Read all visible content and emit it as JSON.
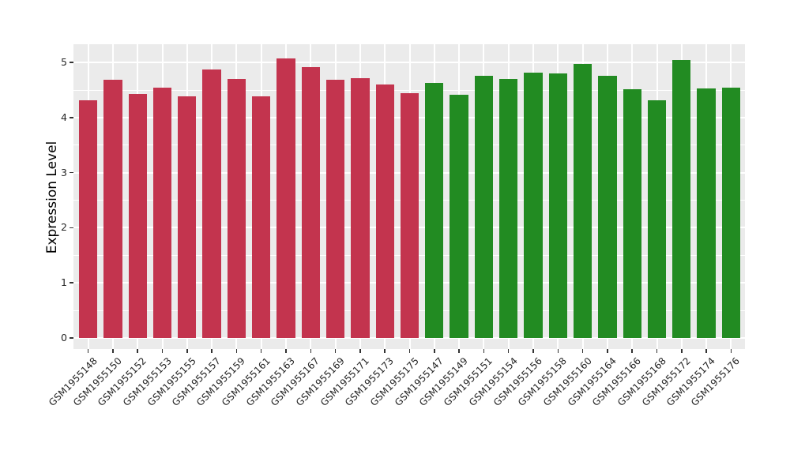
{
  "figure": {
    "background_color": "#ffffff",
    "panel_background_color": "#ebebeb",
    "grid_color": "#ffffff",
    "tick_color": "#333333",
    "tick_label_color": "#262626",
    "axis_title_color": "#000000"
  },
  "chart_data": {
    "type": "bar",
    "title": "",
    "xlabel": "",
    "ylabel": "Expression Level",
    "ylim": [
      0,
      5.33
    ],
    "yticks": [
      0,
      1,
      2,
      3,
      4,
      5
    ],
    "minor_yticks": [
      0.5,
      1.5,
      2.5,
      3.5,
      4.5
    ],
    "grid": "on",
    "legend": "none",
    "x_tick_rotation_deg": 45,
    "group_colors": {
      "group1": "#c3344e",
      "group2": "#228b22"
    },
    "categories": [
      "GSM1955148",
      "GSM1955150",
      "GSM1955152",
      "GSM1955153",
      "GSM1955155",
      "GSM1955157",
      "GSM1955159",
      "GSM1955161",
      "GSM1955163",
      "GSM1955167",
      "GSM1955169",
      "GSM1955171",
      "GSM1955173",
      "GSM1955175",
      "GSM1955147",
      "GSM1955149",
      "GSM1955151",
      "GSM1955154",
      "GSM1955156",
      "GSM1955158",
      "GSM1955160",
      "GSM1955164",
      "GSM1955166",
      "GSM1955168",
      "GSM1955172",
      "GSM1955174",
      "GSM1955176"
    ],
    "values": [
      4.32,
      4.69,
      4.43,
      4.55,
      4.38,
      4.88,
      4.7,
      4.39,
      5.08,
      4.91,
      4.69,
      4.72,
      4.6,
      4.45,
      4.63,
      4.42,
      4.76,
      4.7,
      4.81,
      4.8,
      4.97,
      4.76,
      4.51,
      4.32,
      5.05,
      4.53,
      4.55
    ],
    "colors": [
      "#c3344e",
      "#c3344e",
      "#c3344e",
      "#c3344e",
      "#c3344e",
      "#c3344e",
      "#c3344e",
      "#c3344e",
      "#c3344e",
      "#c3344e",
      "#c3344e",
      "#c3344e",
      "#c3344e",
      "#c3344e",
      "#228b22",
      "#228b22",
      "#228b22",
      "#228b22",
      "#228b22",
      "#228b22",
      "#228b22",
      "#228b22",
      "#228b22",
      "#228b22",
      "#228b22",
      "#228b22",
      "#228b22"
    ]
  }
}
